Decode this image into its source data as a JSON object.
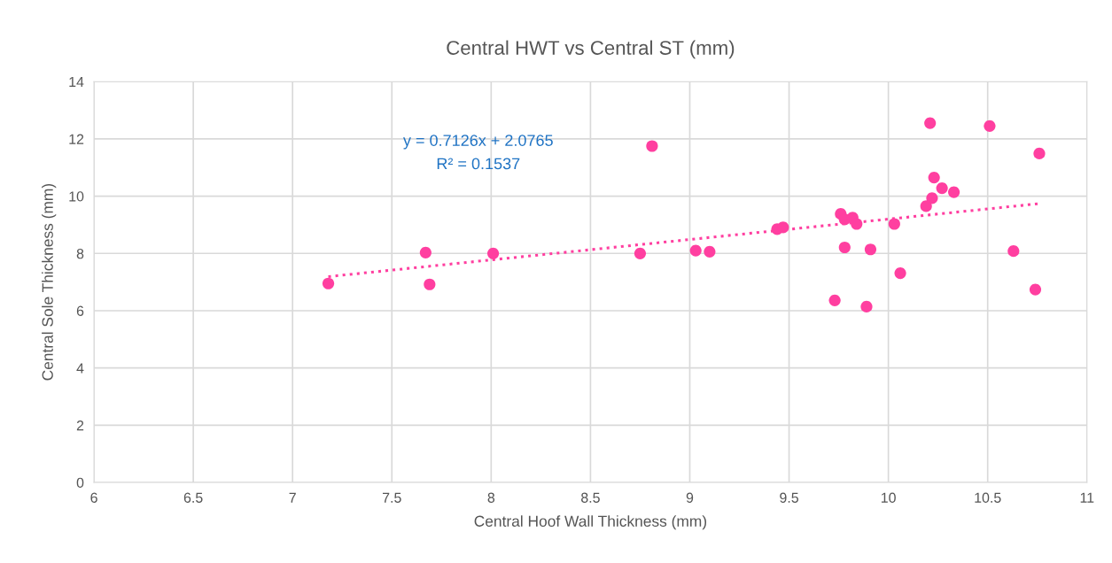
{
  "chart_data": {
    "type": "scatter",
    "title": "Central HWT vs Central ST (mm)",
    "xlabel": "Central Hoof Wall Thickness (mm)",
    "ylabel": "Central Sole Thickness (mm)",
    "series": [
      {
        "color": "#ff3fa0",
        "marker": "circle",
        "x": [
          7.18,
          7.67,
          7.69,
          8.01,
          8.75,
          8.81,
          9.03,
          9.1,
          9.44,
          9.47,
          10.21,
          10.51,
          10.76,
          10.23,
          10.27,
          10.33,
          10.22,
          10.19,
          9.76,
          9.78,
          9.82,
          9.84,
          10.03,
          9.78,
          9.91,
          10.06,
          10.63,
          10.74,
          9.73,
          9.89
        ],
        "values": [
          6.95,
          8.03,
          6.92,
          8.0,
          8.0,
          11.75,
          8.1,
          8.06,
          8.85,
          8.91,
          12.55,
          12.45,
          11.49,
          10.65,
          10.28,
          10.14,
          9.93,
          9.65,
          9.38,
          9.19,
          9.25,
          9.03,
          9.03,
          8.21,
          8.14,
          7.31,
          8.08,
          6.74,
          6.36,
          6.14
        ]
      },
      {
        "type": "line",
        "color": "#ff3fa0",
        "line_style": "dotted",
        "marker": "none",
        "x": [
          7.18,
          10.76
        ],
        "values": [
          7.19,
          9.74
        ]
      }
    ],
    "annotations": [
      "y = 0.7126x + 2.0765",
      "R² = 0.1537"
    ],
    "xlim": [
      6,
      11
    ],
    "xticks": [
      6,
      6.5,
      7,
      7.5,
      8,
      8.5,
      9,
      9.5,
      10,
      10.5,
      11
    ],
    "ylim": [
      0,
      14
    ],
    "yticks": [
      0,
      2,
      4,
      6,
      8,
      10,
      12,
      14
    ],
    "grid": true,
    "legend": false
  }
}
